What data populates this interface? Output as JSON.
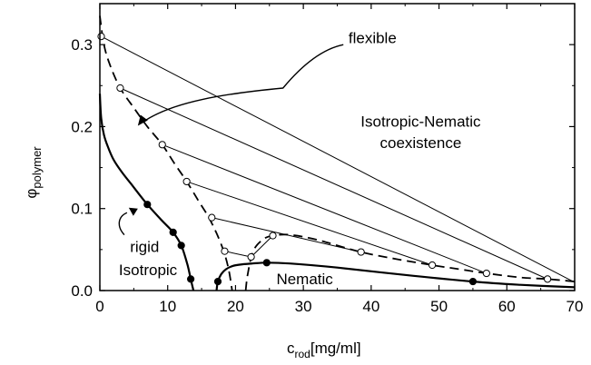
{
  "chart_data": {
    "type": "scatter",
    "xlabel": {
      "main": "c",
      "sub": "rod",
      "unit": "[mg/ml]"
    },
    "ylabel": {
      "main": "φ",
      "sub": "polymer"
    },
    "xlim": [
      0,
      70
    ],
    "ylim": [
      0,
      0.35
    ],
    "xticks": [
      0,
      10,
      20,
      30,
      40,
      50,
      60,
      70
    ],
    "xtick_labels": [
      "0",
      "10",
      "20",
      "30",
      "40",
      "50",
      "60",
      "70"
    ],
    "yticks": [
      0,
      0.1,
      0.2,
      0.3
    ],
    "ytick_labels": [
      "0.0",
      "0.1",
      "0.2",
      "0.3"
    ],
    "grid": false,
    "series": [
      {
        "name": "rigid",
        "style": "solid",
        "curves": [
          {
            "x": [
              0.0,
              0.2,
              0.6,
              1.2,
              2.0,
              3.2,
              4.8,
              7.0,
              9.2,
              10.8,
              12.0,
              12.9,
              13.4,
              13.8
            ],
            "y": [
              0.24,
              0.21,
              0.19,
              0.175,
              0.16,
              0.145,
              0.128,
              0.105,
              0.085,
              0.071,
              0.055,
              0.032,
              0.014,
              0.0
            ]
          },
          {
            "x": [
              17.2,
              17.4,
              17.9,
              18.6,
              19.6,
              21.0,
              22.5,
              24.6,
              28,
              35,
              45,
              55.0,
              62,
              70
            ],
            "y": [
              0.0,
              0.011,
              0.02,
              0.026,
              0.03,
              0.032,
              0.033,
              0.034,
              0.033,
              0.028,
              0.019,
              0.011,
              0.007,
              0.004
            ]
          }
        ],
        "points": [
          [
            7.0,
            0.105
          ],
          [
            10.8,
            0.071
          ],
          [
            12.0,
            0.055
          ],
          [
            13.4,
            0.014
          ],
          [
            17.4,
            0.011
          ],
          [
            24.6,
            0.034
          ],
          [
            55.0,
            0.011
          ]
        ]
      },
      {
        "name": "flexible",
        "style": "dashed",
        "curves": [
          {
            "x": [
              0.0,
              0.6,
              1.5,
              3.0,
              5.0,
              7.0,
              9.2,
              11.0,
              12.8,
              14.5,
              16.0,
              17.2,
              18.3,
              19.0,
              19.5
            ],
            "y": [
              0.335,
              0.3,
              0.275,
              0.247,
              0.223,
              0.2,
              0.178,
              0.155,
              0.133,
              0.11,
              0.09,
              0.07,
              0.047,
              0.025,
              0.0
            ]
          },
          {
            "x": [
              21.5,
              21.8,
              22.6,
              24.0,
              25.5,
              28.0,
              32.0,
              38.5,
              44.0,
              49.0,
              53.0,
              57.0,
              62.0,
              66.0,
              70.0
            ],
            "y": [
              0.0,
              0.02,
              0.048,
              0.062,
              0.067,
              0.068,
              0.062,
              0.047,
              0.038,
              0.031,
              0.026,
              0.021,
              0.016,
              0.014,
              0.011
            ]
          }
        ],
        "points": [
          [
            0.2,
            0.31
          ],
          [
            3.0,
            0.247
          ],
          [
            9.2,
            0.178
          ],
          [
            12.8,
            0.133
          ],
          [
            16.5,
            0.089
          ],
          [
            18.4,
            0.048
          ],
          [
            22.3,
            0.041
          ],
          [
            25.5,
            0.067
          ],
          [
            38.5,
            0.047
          ],
          [
            49.0,
            0.031
          ],
          [
            57.0,
            0.021
          ],
          [
            66.0,
            0.014
          ]
        ]
      }
    ],
    "tie_lines": [
      {
        "from": [
          0.2,
          0.31
        ],
        "to": [
          70.0,
          0.01
        ]
      },
      {
        "from": [
          3.0,
          0.247
        ],
        "to": [
          66.0,
          0.014
        ]
      },
      {
        "from": [
          9.2,
          0.178
        ],
        "to": [
          57.0,
          0.021
        ]
      },
      {
        "from": [
          12.8,
          0.133
        ],
        "to": [
          49.0,
          0.031
        ]
      },
      {
        "from": [
          16.5,
          0.089
        ],
        "to": [
          38.5,
          0.047
        ]
      },
      {
        "from": [
          18.4,
          0.048
        ],
        "to": [
          22.3,
          0.041
        ]
      },
      {
        "from": [
          22.3,
          0.041
        ],
        "to": [
          25.5,
          0.067
        ]
      }
    ],
    "annotations": [
      {
        "key": "flexible",
        "text": "flexible",
        "x": 40.2,
        "y": 0.302,
        "anchor": "middle"
      },
      {
        "key": "coexist1",
        "text": "Isotropic-Nematic",
        "x": 47.3,
        "y": 0.2,
        "anchor": "middle"
      },
      {
        "key": "coexist2",
        "text": "coexistence",
        "x": 47.3,
        "y": 0.174,
        "anchor": "middle"
      },
      {
        "key": "rigid",
        "text": "rigid",
        "x": 6.6,
        "y": 0.047,
        "anchor": "middle"
      },
      {
        "key": "isotropic",
        "text": "Isotropic",
        "x": 7.1,
        "y": 0.019,
        "anchor": "middle"
      },
      {
        "key": "nematic",
        "text": "Nematic",
        "x": 30.2,
        "y": 0.008,
        "anchor": "middle"
      }
    ],
    "arrows": [
      {
        "key": "flexible-arrow",
        "path": [
          [
            35.9,
            0.3
          ],
          [
            32.4,
            0.294
          ],
          [
            29.4,
            0.271
          ],
          [
            27.0,
            0.247
          ]
        ],
        "head_from": [
          8.3,
          0.224
        ],
        "head_to": [
          5.6,
          0.201
        ],
        "curve": [
          [
            27.0,
            0.247
          ],
          [
            18.0,
            0.24
          ],
          [
            11.0,
            0.23
          ],
          [
            6.8,
            0.208
          ]
        ]
      },
      {
        "key": "rigid-arrow",
        "curve": [
          [
            3.6,
            0.068
          ],
          [
            2.5,
            0.078
          ],
          [
            2.6,
            0.09
          ],
          [
            4.0,
            0.095
          ]
        ],
        "head_to": [
          5.6,
          0.1
        ]
      }
    ]
  }
}
